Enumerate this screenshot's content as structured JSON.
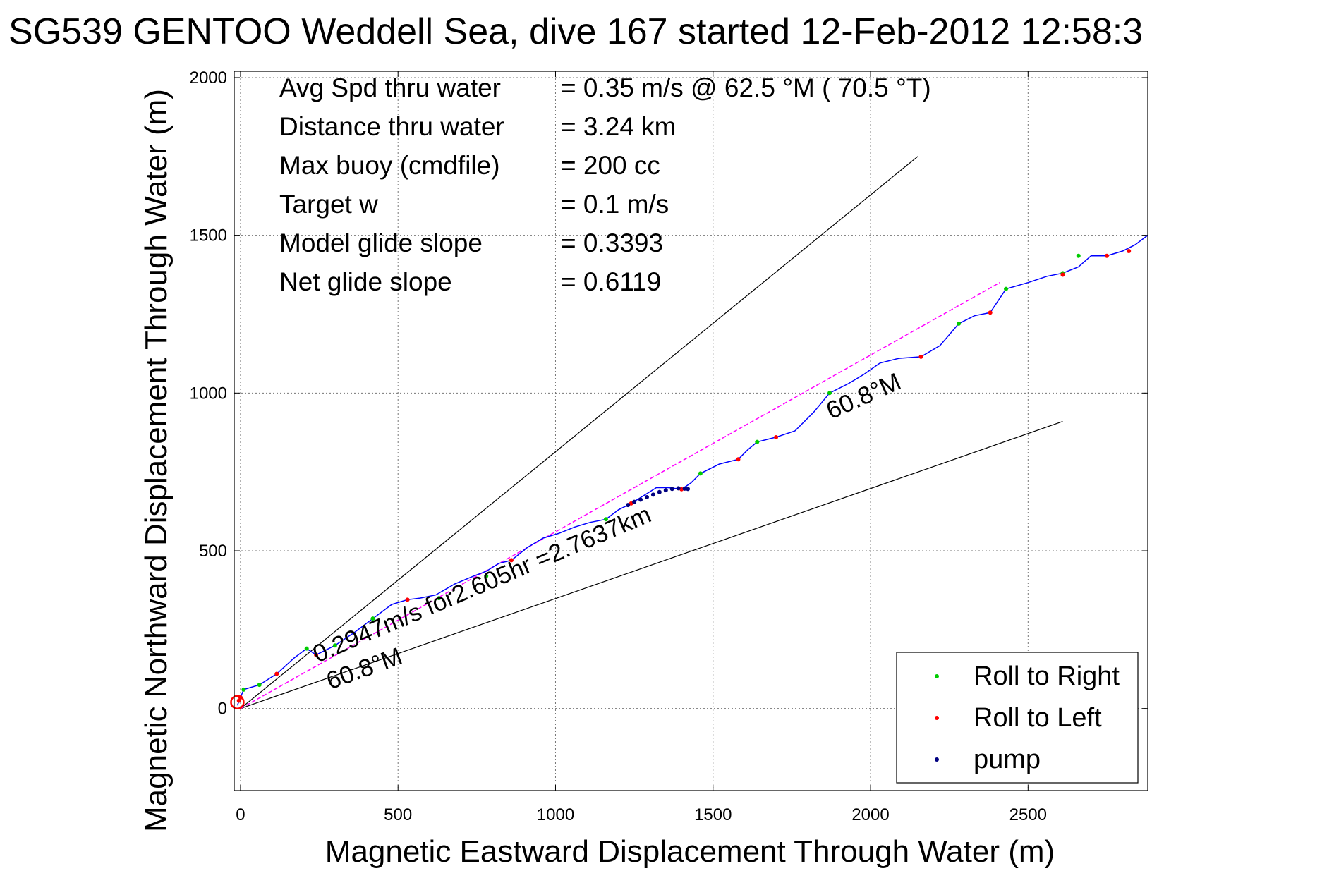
{
  "chart_data": {
    "type": "line",
    "title": "SG539 GENTOO Weddell Sea, dive 167 started 12-Feb-2012 12:58:3",
    "xlabel": "Magnetic Eastward Displacement Through Water (m)",
    "ylabel": "Magnetic Northward Displacement Through Water (m)",
    "xlim": [
      -20,
      2880
    ],
    "ylim": [
      -260,
      2020
    ],
    "xticks": [
      0,
      500,
      1000,
      1500,
      2000,
      2500
    ],
    "yticks": [
      0,
      500,
      1000,
      1500,
      2000
    ],
    "grid": true,
    "legend_position": "bottom-right",
    "stats": [
      {
        "label": "Avg Spd thru water",
        "value": "=  0.35 m/s @  62.5 °M ( 70.5 °T)"
      },
      {
        "label": "Distance thru water",
        "value": "=  3.24 km"
      },
      {
        "label": "Max buoy (cmdfile)",
        "value": "= 200 cc"
      },
      {
        "label": "Target w",
        "value": "= 0.1 m/s"
      },
      {
        "label": "Model glide slope",
        "value": "= 0.3393"
      },
      {
        "label": "Net glide slope",
        "value": "= 0.6119"
      }
    ],
    "annotations": [
      {
        "text": "0.2947m/s for2.605hr =2.7637km"
      },
      {
        "text": "60.8°M"
      },
      {
        "text": "60.8°M"
      }
    ],
    "guide_lines": [
      {
        "x": [
          0,
          2150
        ],
        "y": [
          0,
          1750
        ]
      },
      {
        "x": [
          0,
          2610
        ],
        "y": [
          0,
          910
        ]
      }
    ],
    "net_track": {
      "x": [
        0,
        2410
      ],
      "y": [
        0,
        1350
      ],
      "color": "#ff00ff"
    },
    "glider_track": {
      "color": "#0000ff",
      "x": [
        -10,
        10,
        60,
        115,
        170,
        210,
        240,
        300,
        360,
        420,
        480,
        530,
        570,
        620,
        680,
        740,
        780,
        820,
        860,
        910,
        960,
        1010,
        1060,
        1110,
        1160,
        1200,
        1240,
        1280,
        1320,
        1360,
        1400,
        1430,
        1460,
        1520,
        1580,
        1610,
        1640,
        1700,
        1760,
        1820,
        1870,
        1930,
        1980,
        2030,
        2090,
        2160,
        2220,
        2280,
        2330,
        2380,
        2430,
        2500,
        2560,
        2610,
        2660,
        2700,
        2750,
        2800,
        2840,
        2880
      ],
      "y": [
        10,
        60,
        75,
        110,
        160,
        190,
        170,
        200,
        240,
        285,
        330,
        345,
        350,
        360,
        395,
        420,
        435,
        460,
        470,
        510,
        540,
        555,
        575,
        590,
        600,
        630,
        650,
        675,
        700,
        700,
        695,
        715,
        745,
        775,
        790,
        820,
        845,
        860,
        880,
        940,
        1000,
        1030,
        1060,
        1095,
        1110,
        1115,
        1150,
        1220,
        1245,
        1255,
        1330,
        1350,
        1370,
        1380,
        1400,
        1435,
        1435,
        1450,
        1470,
        1500
      ]
    },
    "series": [
      {
        "name": "Roll to Right",
        "color": "#00cc00",
        "x": [
          10,
          60,
          210,
          300,
          420,
          630,
          780,
          1160,
          1460,
          1640,
          1870,
          2280,
          2430,
          2660,
          2610
        ],
        "y": [
          60,
          75,
          190,
          200,
          285,
          350,
          420,
          600,
          745,
          845,
          1000,
          1220,
          1330,
          1435,
          1380
        ]
      },
      {
        "name": "Roll to Left",
        "color": "#ff0000",
        "x": [
          -5,
          0,
          115,
          240,
          530,
          860,
          1240,
          1400,
          1580,
          1700,
          2160,
          2380,
          2610,
          2750,
          2820
        ],
        "y": [
          25,
          35,
          110,
          170,
          345,
          470,
          650,
          695,
          790,
          860,
          1115,
          1255,
          1375,
          1435,
          1450
        ]
      },
      {
        "name": "pump",
        "color": "#000080",
        "x": [
          1230,
          1250,
          1270,
          1290,
          1310,
          1330,
          1350,
          1370,
          1390,
          1410,
          1420
        ],
        "y": [
          645,
          655,
          662,
          670,
          678,
          686,
          692,
          696,
          698,
          697,
          696
        ]
      }
    ]
  }
}
